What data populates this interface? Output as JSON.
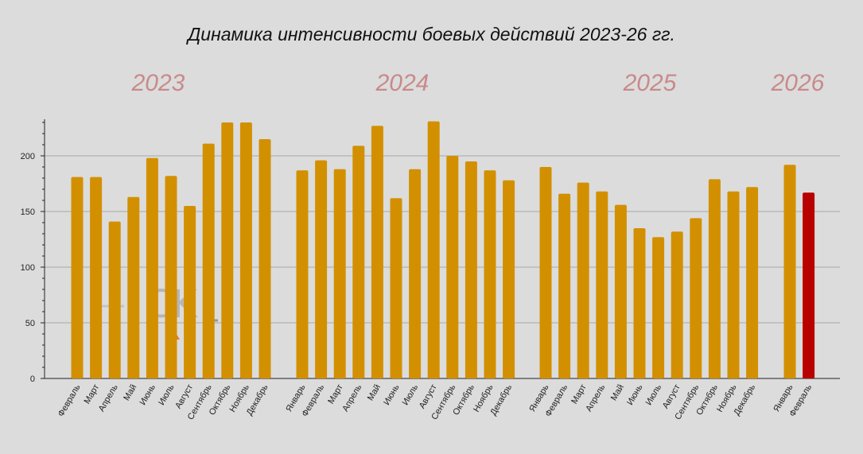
{
  "chart_data": {
    "type": "bar",
    "title": "Динамика интенсивности боевых действий 2023-26 гг.",
    "xlabel": "",
    "ylabel": "",
    "ylim": [
      0,
      232
    ],
    "yticks": [
      0,
      50,
      100,
      150,
      200
    ],
    "colors": {
      "bar": "#d29000",
      "highlight": "#b80000",
      "grid": "#a8a8a8",
      "year_label": "#c98a8a"
    },
    "watermark": "CK",
    "groups": [
      {
        "year": "2023",
        "categories": [
          "Февраль",
          "Март",
          "Апрель",
          "Май",
          "Июнь",
          "Июль",
          "Август",
          "Сентябрь",
          "Октябрь",
          "Ноябрь",
          "Декабрь"
        ],
        "values": [
          181,
          181,
          141,
          163,
          198,
          182,
          155,
          211,
          230,
          230,
          215
        ]
      },
      {
        "year": "2024",
        "categories": [
          "Январь",
          "Февраль",
          "Март",
          "Апрель",
          "Май",
          "Июнь",
          "Июль",
          "Август",
          "Сентябрь",
          "Октябрь",
          "Ноябрь",
          "Декабрь"
        ],
        "values": [
          187,
          196,
          188,
          209,
          227,
          162,
          188,
          231,
          200,
          195,
          187,
          178
        ]
      },
      {
        "year": "2025",
        "categories": [
          "Январь",
          "Февраль",
          "Март",
          "Апрель",
          "Май",
          "Июнь",
          "Июль",
          "Август",
          "Сентябрь",
          "Октябрь",
          "Ноябрь",
          "Декабрь"
        ],
        "values": [
          190,
          166,
          176,
          168,
          156,
          135,
          127,
          132,
          144,
          179,
          168,
          172
        ]
      },
      {
        "year": "2026",
        "categories": [
          "Январь",
          "Февраль"
        ],
        "values": [
          192,
          167
        ],
        "highlight_index": 1
      }
    ]
  }
}
